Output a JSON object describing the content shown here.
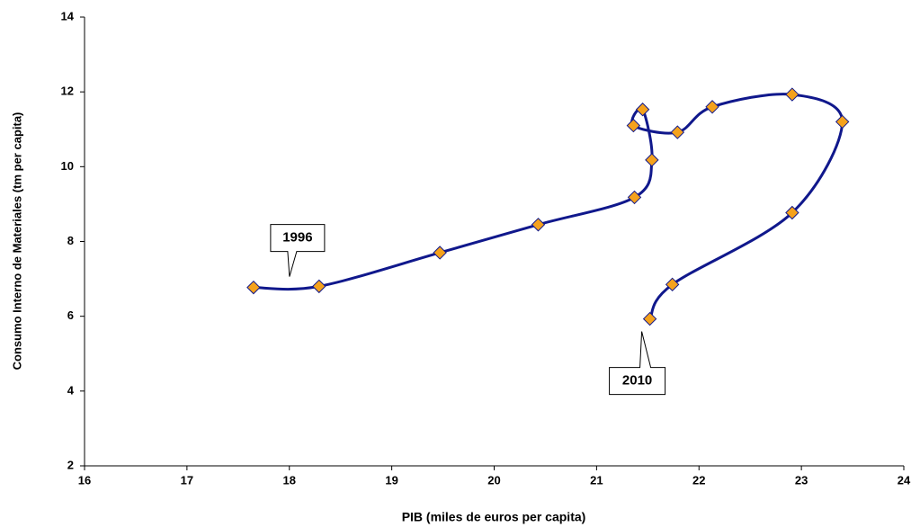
{
  "chart_data": {
    "type": "line",
    "xlabel": "PIB (miles de euros per capita)",
    "ylabel": "Consumo Interno de Materiales (tm per capita)",
    "x": [
      17.65,
      18.29,
      19.47,
      20.43,
      21.37,
      21.54,
      21.45,
      21.36,
      21.79,
      22.13,
      22.91,
      23.4,
      22.91,
      21.74,
      21.52
    ],
    "values": [
      6.77,
      6.8,
      7.7,
      8.45,
      9.18,
      10.18,
      11.53,
      11.1,
      10.92,
      11.6,
      11.93,
      11.2,
      8.77,
      6.85,
      5.93
    ],
    "color": "#10188c",
    "marker_color": "#f5a21c",
    "xlim": [
      16,
      24
    ],
    "xticks": [
      16,
      17,
      18,
      19,
      20,
      21,
      22,
      23,
      24
    ],
    "ylim": [
      2,
      14
    ],
    "yticks": [
      2,
      4,
      6,
      8,
      10,
      12,
      14
    ],
    "grid": false,
    "annotations": [
      "1996",
      "2010"
    ]
  }
}
